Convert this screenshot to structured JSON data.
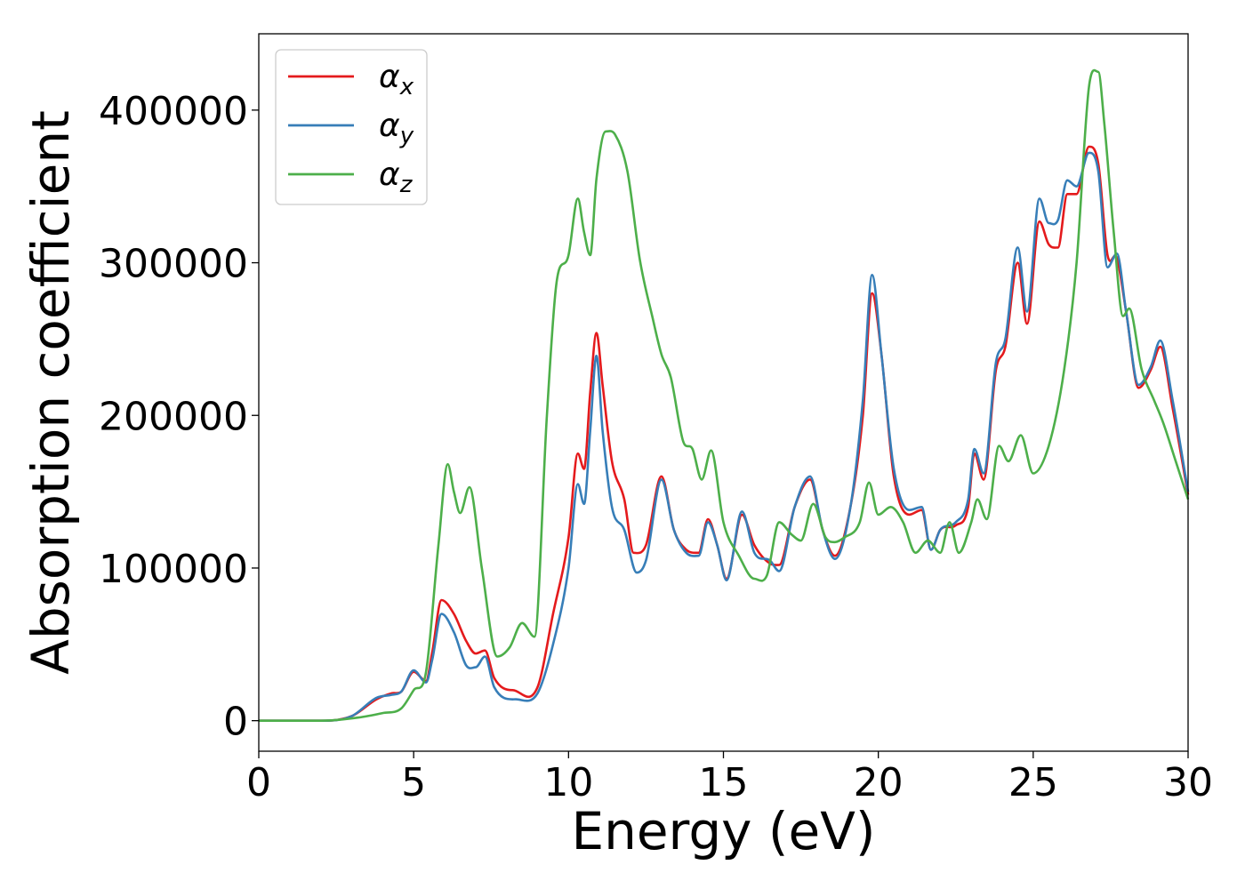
{
  "chart_data": {
    "type": "line",
    "title": "",
    "xlabel": "Energy (eV)",
    "ylabel": "Absorption coefficient",
    "xlim": [
      0,
      30
    ],
    "ylim": [
      -20000,
      450000
    ],
    "xticks": [
      0,
      5,
      10,
      15,
      20,
      25,
      30
    ],
    "yticks": [
      0,
      100000,
      200000,
      300000,
      400000
    ],
    "grid": false,
    "legend_position": "top-left",
    "series": [
      {
        "name": "α",
        "subscript": "x",
        "color": "#e41a1c",
        "points": [
          [
            0,
            0
          ],
          [
            2,
            0
          ],
          [
            3,
            3000
          ],
          [
            3.8,
            14000
          ],
          [
            4.3,
            18000
          ],
          [
            4.6,
            19000
          ],
          [
            5.0,
            32000
          ],
          [
            5.4,
            26000
          ],
          [
            5.6,
            45000
          ],
          [
            5.9,
            79000
          ],
          [
            6.3,
            70000
          ],
          [
            6.7,
            52000
          ],
          [
            7.0,
            44000
          ],
          [
            7.3,
            46000
          ],
          [
            7.6,
            28000
          ],
          [
            8.2,
            20000
          ],
          [
            9.0,
            22000
          ],
          [
            9.5,
            70000
          ],
          [
            10.0,
            120000
          ],
          [
            10.3,
            175000
          ],
          [
            10.5,
            165000
          ],
          [
            10.7,
            215000
          ],
          [
            10.9,
            254000
          ],
          [
            11.1,
            220000
          ],
          [
            11.4,
            170000
          ],
          [
            11.8,
            145000
          ],
          [
            12.1,
            110000
          ],
          [
            12.5,
            115000
          ],
          [
            13.0,
            160000
          ],
          [
            13.4,
            125000
          ],
          [
            13.8,
            112000
          ],
          [
            14.2,
            110000
          ],
          [
            14.5,
            132000
          ],
          [
            14.8,
            115000
          ],
          [
            15.1,
            93000
          ],
          [
            15.6,
            135000
          ],
          [
            16.0,
            115000
          ],
          [
            16.5,
            103000
          ],
          [
            16.8,
            102000
          ],
          [
            17.3,
            140000
          ],
          [
            17.8,
            158000
          ],
          [
            18.2,
            125000
          ],
          [
            18.6,
            108000
          ],
          [
            19.1,
            140000
          ],
          [
            19.5,
            200000
          ],
          [
            19.8,
            280000
          ],
          [
            20.1,
            240000
          ],
          [
            20.5,
            160000
          ],
          [
            21.0,
            135000
          ],
          [
            21.4,
            138000
          ],
          [
            21.7,
            112000
          ],
          [
            22.0,
            125000
          ],
          [
            22.5,
            128000
          ],
          [
            22.9,
            140000
          ],
          [
            23.1,
            175000
          ],
          [
            23.4,
            158000
          ],
          [
            23.8,
            230000
          ],
          [
            24.1,
            245000
          ],
          [
            24.5,
            300000
          ],
          [
            24.8,
            260000
          ],
          [
            25.2,
            327000
          ],
          [
            25.5,
            312000
          ],
          [
            25.8,
            310000
          ],
          [
            26.1,
            345000
          ],
          [
            26.4,
            345000
          ],
          [
            26.8,
            376000
          ],
          [
            27.1,
            365000
          ],
          [
            27.4,
            305000
          ],
          [
            27.7,
            303000
          ],
          [
            28.0,
            268000
          ],
          [
            28.4,
            218000
          ],
          [
            28.8,
            230000
          ],
          [
            29.1,
            245000
          ],
          [
            29.5,
            205000
          ],
          [
            30.0,
            148000
          ]
        ]
      },
      {
        "name": "α",
        "subscript": "y",
        "color": "#377eb8",
        "points": [
          [
            0,
            0
          ],
          [
            2,
            0
          ],
          [
            3,
            3000
          ],
          [
            3.8,
            15000
          ],
          [
            4.3,
            17000
          ],
          [
            4.6,
            19000
          ],
          [
            5.0,
            33000
          ],
          [
            5.4,
            25000
          ],
          [
            5.6,
            40000
          ],
          [
            5.9,
            70000
          ],
          [
            6.3,
            58000
          ],
          [
            6.7,
            36000
          ],
          [
            7.0,
            35000
          ],
          [
            7.3,
            42000
          ],
          [
            7.6,
            22000
          ],
          [
            8.3,
            14000
          ],
          [
            9.0,
            18000
          ],
          [
            9.5,
            50000
          ],
          [
            10.0,
            100000
          ],
          [
            10.3,
            155000
          ],
          [
            10.5,
            142000
          ],
          [
            10.7,
            190000
          ],
          [
            10.9,
            239000
          ],
          [
            11.1,
            190000
          ],
          [
            11.4,
            140000
          ],
          [
            11.8,
            125000
          ],
          [
            12.2,
            97000
          ],
          [
            12.5,
            105000
          ],
          [
            13.0,
            158000
          ],
          [
            13.4,
            125000
          ],
          [
            13.8,
            110000
          ],
          [
            14.2,
            108000
          ],
          [
            14.5,
            130000
          ],
          [
            14.8,
            115000
          ],
          [
            15.1,
            92000
          ],
          [
            15.6,
            137000
          ],
          [
            16.0,
            110000
          ],
          [
            16.5,
            105000
          ],
          [
            16.8,
            98000
          ],
          [
            17.3,
            140000
          ],
          [
            17.8,
            160000
          ],
          [
            18.2,
            125000
          ],
          [
            18.6,
            106000
          ],
          [
            19.1,
            140000
          ],
          [
            19.5,
            210000
          ],
          [
            19.8,
            292000
          ],
          [
            20.1,
            240000
          ],
          [
            20.5,
            165000
          ],
          [
            21.0,
            138000
          ],
          [
            21.4,
            140000
          ],
          [
            21.7,
            112000
          ],
          [
            22.0,
            125000
          ],
          [
            22.5,
            130000
          ],
          [
            22.9,
            145000
          ],
          [
            23.1,
            178000
          ],
          [
            23.4,
            162000
          ],
          [
            23.8,
            235000
          ],
          [
            24.1,
            250000
          ],
          [
            24.5,
            310000
          ],
          [
            24.8,
            268000
          ],
          [
            25.2,
            342000
          ],
          [
            25.5,
            326000
          ],
          [
            25.8,
            328000
          ],
          [
            26.1,
            354000
          ],
          [
            26.4,
            350000
          ],
          [
            26.8,
            372000
          ],
          [
            27.1,
            360000
          ],
          [
            27.4,
            297000
          ],
          [
            27.7,
            306000
          ],
          [
            28.0,
            268000
          ],
          [
            28.4,
            220000
          ],
          [
            28.8,
            232000
          ],
          [
            29.1,
            249000
          ],
          [
            29.5,
            210000
          ],
          [
            30.0,
            150000
          ]
        ]
      },
      {
        "name": "α",
        "subscript": "z",
        "color": "#4daf4a",
        "points": [
          [
            0,
            0
          ],
          [
            2,
            0
          ],
          [
            3.2,
            2000
          ],
          [
            4.0,
            5000
          ],
          [
            4.6,
            8000
          ],
          [
            5.0,
            20000
          ],
          [
            5.4,
            32000
          ],
          [
            5.8,
            115000
          ],
          [
            6.1,
            168000
          ],
          [
            6.3,
            150000
          ],
          [
            6.5,
            136000
          ],
          [
            6.8,
            153000
          ],
          [
            7.2,
            100000
          ],
          [
            7.7,
            42000
          ],
          [
            8.1,
            48000
          ],
          [
            8.5,
            64000
          ],
          [
            8.9,
            55000
          ],
          [
            9.3,
            200000
          ],
          [
            9.6,
            285000
          ],
          [
            10.0,
            305000
          ],
          [
            10.3,
            342000
          ],
          [
            10.5,
            320000
          ],
          [
            10.7,
            305000
          ],
          [
            10.9,
            355000
          ],
          [
            11.2,
            386000
          ],
          [
            11.5,
            384000
          ],
          [
            11.9,
            360000
          ],
          [
            12.3,
            302000
          ],
          [
            12.7,
            265000
          ],
          [
            13.0,
            240000
          ],
          [
            13.3,
            225000
          ],
          [
            13.7,
            183000
          ],
          [
            14.0,
            178000
          ],
          [
            14.3,
            158000
          ],
          [
            14.6,
            177000
          ],
          [
            15.0,
            130000
          ],
          [
            15.5,
            108000
          ],
          [
            16.0,
            93000
          ],
          [
            16.4,
            95000
          ],
          [
            16.8,
            130000
          ],
          [
            17.2,
            122000
          ],
          [
            17.5,
            118000
          ],
          [
            17.9,
            142000
          ],
          [
            18.3,
            120000
          ],
          [
            18.6,
            117000
          ],
          [
            18.9,
            120000
          ],
          [
            19.4,
            130000
          ],
          [
            19.7,
            156000
          ],
          [
            20.0,
            135000
          ],
          [
            20.4,
            140000
          ],
          [
            20.8,
            130000
          ],
          [
            21.2,
            110000
          ],
          [
            21.6,
            118000
          ],
          [
            22.0,
            110000
          ],
          [
            22.3,
            130000
          ],
          [
            22.6,
            110000
          ],
          [
            23.0,
            130000
          ],
          [
            23.2,
            145000
          ],
          [
            23.5,
            132000
          ],
          [
            23.9,
            180000
          ],
          [
            24.2,
            170000
          ],
          [
            24.6,
            187000
          ],
          [
            25.0,
            162000
          ],
          [
            25.5,
            180000
          ],
          [
            26.0,
            230000
          ],
          [
            26.4,
            300000
          ],
          [
            26.8,
            415000
          ],
          [
            27.1,
            425000
          ],
          [
            27.3,
            390000
          ],
          [
            27.6,
            320000
          ],
          [
            27.9,
            265000
          ],
          [
            28.1,
            270000
          ],
          [
            28.5,
            230000
          ],
          [
            28.9,
            210000
          ],
          [
            29.2,
            195000
          ],
          [
            29.6,
            170000
          ],
          [
            30.0,
            145000
          ]
        ]
      }
    ]
  }
}
